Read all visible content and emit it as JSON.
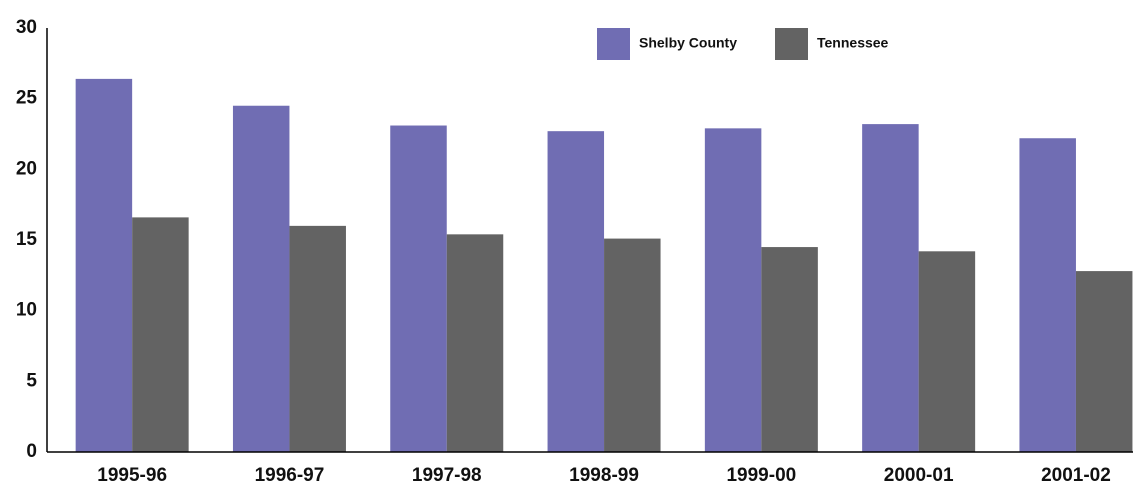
{
  "chart_data": {
    "type": "bar",
    "categories": [
      "1995-96",
      "1996-97",
      "1997-98",
      "1998-99",
      "1999-00",
      "2000-01",
      "2001-02"
    ],
    "series": [
      {
        "name": "Shelby County",
        "color": "#706db3",
        "values": [
          26.4,
          24.5,
          23.1,
          22.7,
          22.9,
          23.2,
          22.2
        ]
      },
      {
        "name": "Tennessee",
        "color": "#636363",
        "values": [
          16.6,
          16.0,
          15.4,
          15.1,
          14.5,
          14.2,
          12.8
        ]
      }
    ],
    "ylim": [
      0,
      30
    ],
    "yticks": [
      0,
      5,
      10,
      15,
      20,
      25,
      30
    ],
    "grid": false,
    "legend": "top"
  }
}
